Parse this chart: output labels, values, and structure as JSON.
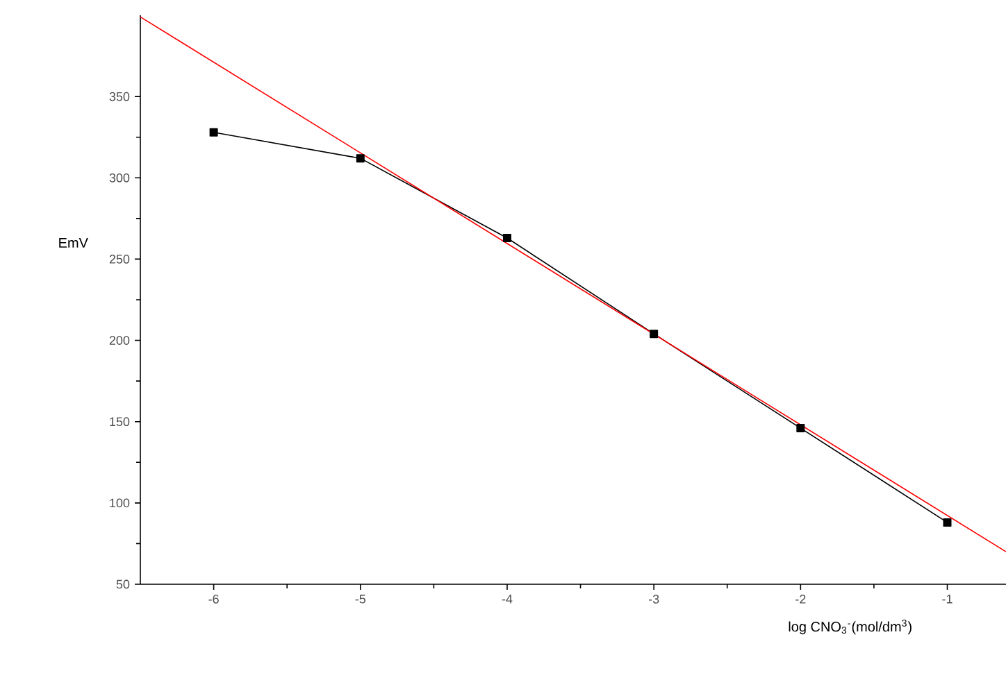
{
  "chart_data": {
    "type": "line",
    "xlabel": "log CNO$_{3}$$^{-}$(mol/dm$^{3}$)",
    "ylabel": "EmV",
    "xlim": [
      -6.5,
      -0.6
    ],
    "ylim": [
      50,
      400
    ],
    "xticks": [
      -6,
      -5,
      -4,
      -3,
      -2,
      -1
    ],
    "yticks": [
      50,
      100,
      150,
      200,
      250,
      300,
      350
    ],
    "series": [
      {
        "color": "#000000",
        "marker": "square",
        "line_style": "solid",
        "x": [
          -6,
          -5,
          -4,
          -3,
          -2,
          -1
        ],
        "values": [
          328,
          312,
          263,
          204,
          146,
          88
        ]
      },
      {
        "color": "#ff0000",
        "marker": "none",
        "line_style": "solid",
        "x": [
          -6.5,
          -0.6
        ],
        "values": [
          399,
          70
        ]
      }
    ]
  }
}
